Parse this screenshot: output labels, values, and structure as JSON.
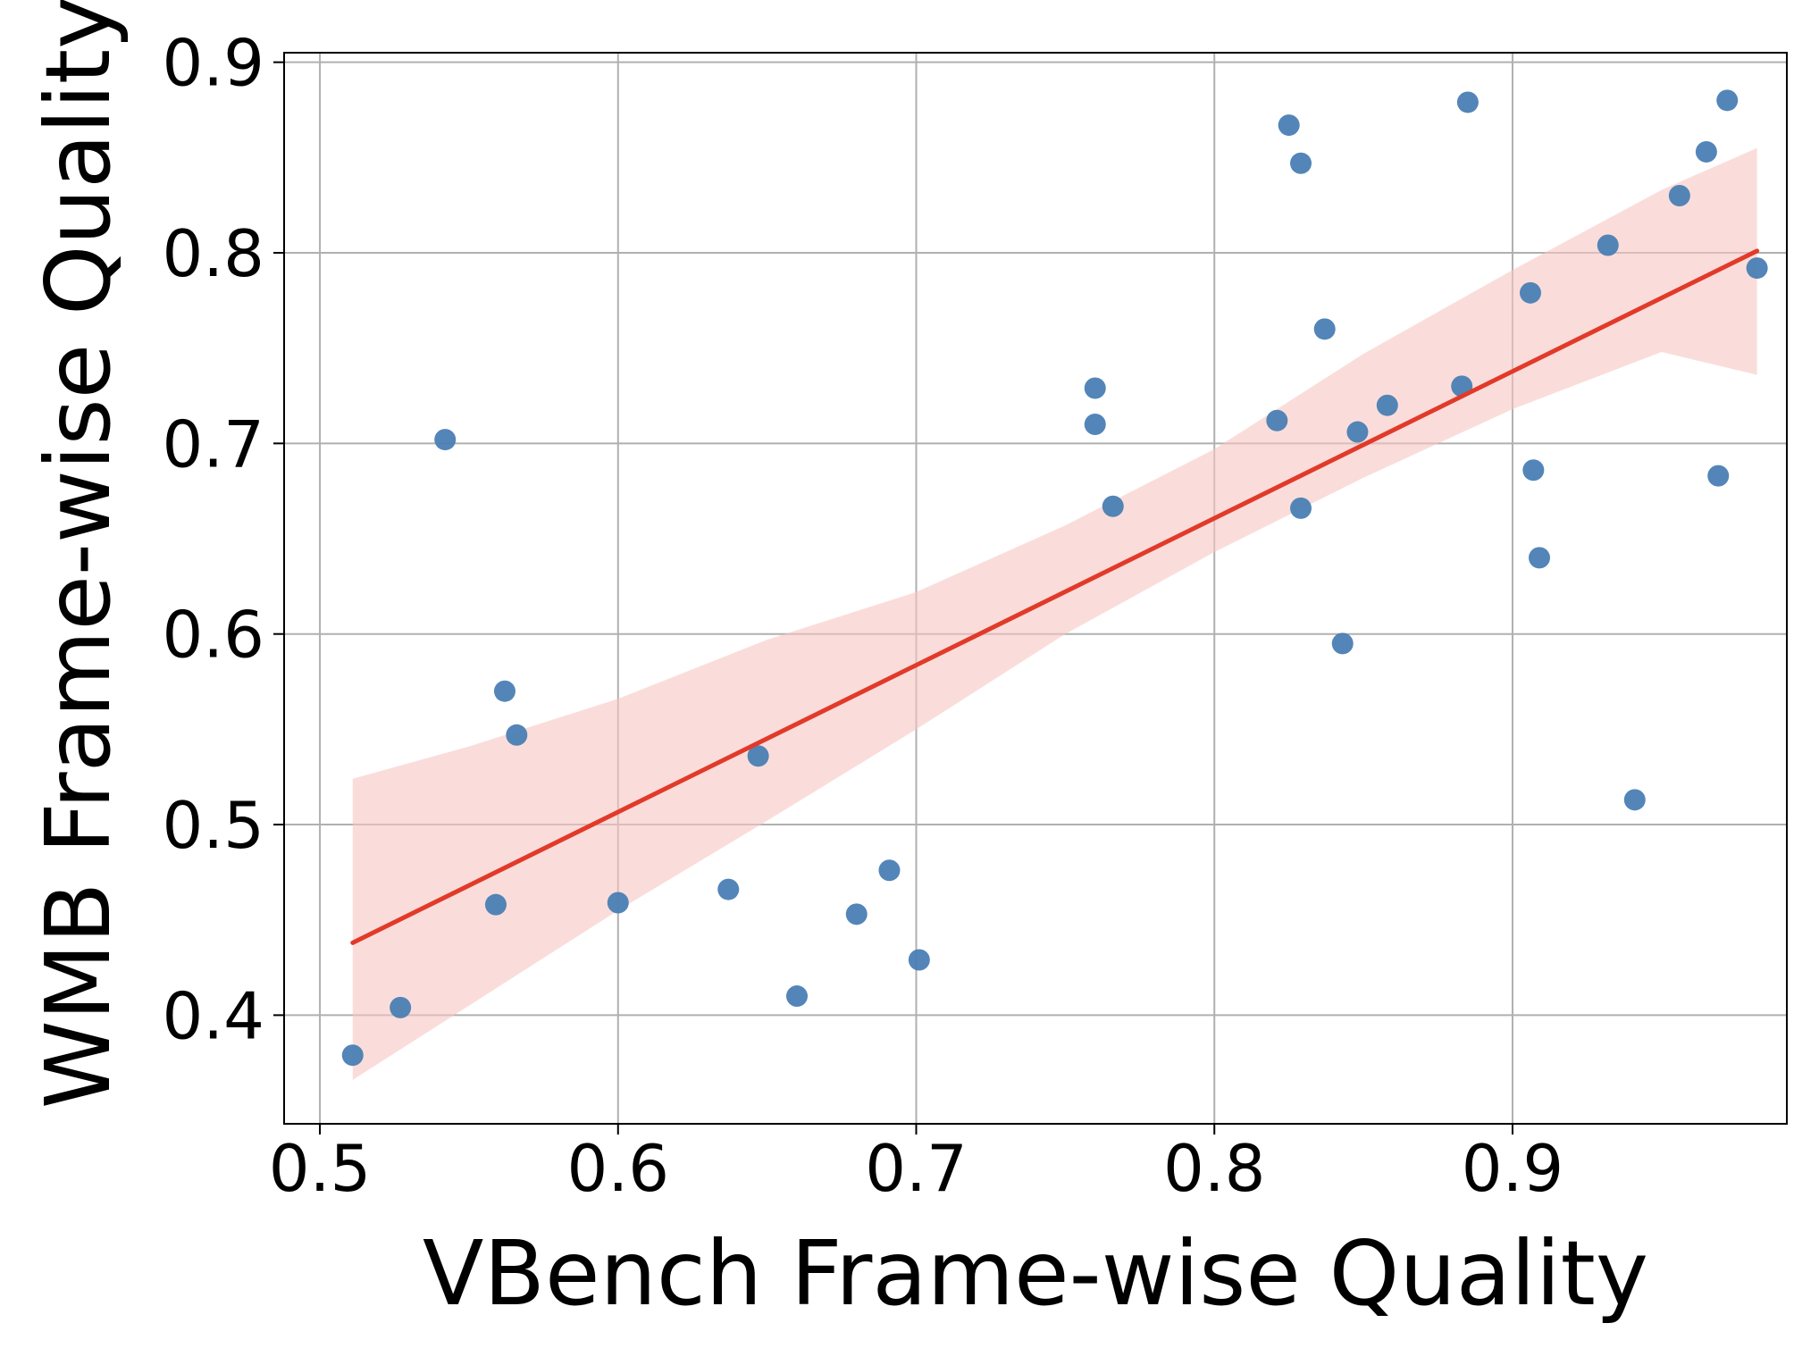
{
  "chart_data": {
    "type": "scatter",
    "title": "",
    "xlabel": "VBench Frame-wise Quality",
    "ylabel": "WMB Frame-wise Quality",
    "xlim": [
      0.488,
      0.992
    ],
    "ylim": [
      0.343,
      0.905
    ],
    "xticks": [
      0.5,
      0.6,
      0.7,
      0.8,
      0.9
    ],
    "yticks": [
      0.4,
      0.5,
      0.6,
      0.7,
      0.8,
      0.9
    ],
    "xtick_labels": [
      "0.5",
      "0.6",
      "0.7",
      "0.8",
      "0.9"
    ],
    "ytick_labels": [
      "0.4",
      "0.5",
      "0.6",
      "0.7",
      "0.8",
      "0.9"
    ],
    "grid": true,
    "colors": {
      "points": "#4a7eb4",
      "fit_line": "#e23a2a",
      "confidence_band": "#f7c6c2",
      "grid": "#b0b0b0",
      "axes": "#000000"
    },
    "series": [
      {
        "x": [
          0.511,
          0.527,
          0.542,
          0.559,
          0.562,
          0.566,
          0.6,
          0.637,
          0.647,
          0.66,
          0.68,
          0.691,
          0.701,
          0.76,
          0.76,
          0.766,
          0.821,
          0.825,
          0.829,
          0.829,
          0.837,
          0.843,
          0.848,
          0.858,
          0.883,
          0.885,
          0.906,
          0.907,
          0.909,
          0.932,
          0.941,
          0.956,
          0.965,
          0.969,
          0.972,
          0.982
        ],
        "y": [
          0.379,
          0.404,
          0.702,
          0.458,
          0.57,
          0.547,
          0.459,
          0.466,
          0.536,
          0.41,
          0.453,
          0.476,
          0.429,
          0.729,
          0.71,
          0.667,
          0.712,
          0.867,
          0.847,
          0.666,
          0.76,
          0.595,
          0.706,
          0.72,
          0.73,
          0.879,
          0.779,
          0.686,
          0.64,
          0.804,
          0.513,
          0.83,
          0.853,
          0.683,
          0.88,
          0.792
        ]
      }
    ],
    "regression": {
      "x": [
        0.511,
        0.982
      ],
      "y": [
        0.438,
        0.801
      ]
    },
    "confidence_band": {
      "x": [
        0.511,
        0.55,
        0.6,
        0.65,
        0.7,
        0.75,
        0.8,
        0.85,
        0.9,
        0.95,
        0.982
      ],
      "lower": [
        0.366,
        0.405,
        0.455,
        0.502,
        0.55,
        0.6,
        0.643,
        0.682,
        0.718,
        0.748,
        0.736
      ],
      "upper": [
        0.524,
        0.541,
        0.566,
        0.597,
        0.622,
        0.657,
        0.697,
        0.747,
        0.791,
        0.833,
        0.855
      ]
    }
  }
}
